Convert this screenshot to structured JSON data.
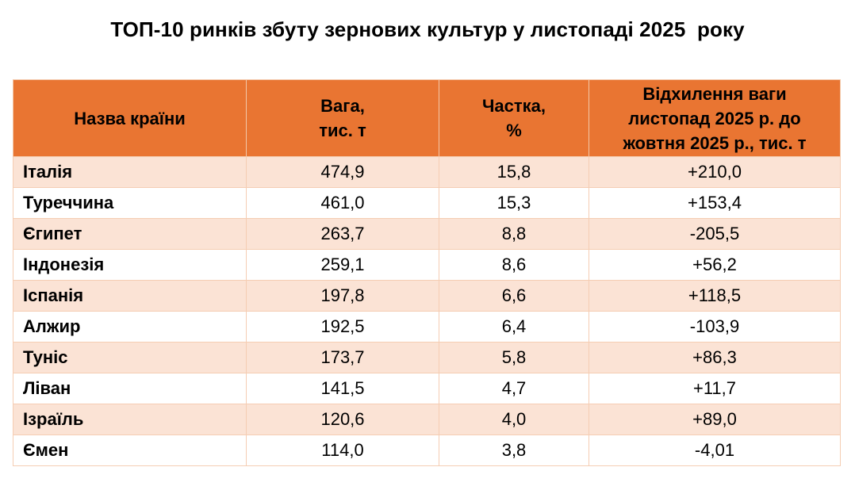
{
  "title": "ТОП-10 ринків збуту зернових культур у листопаді 2025  року",
  "colors": {
    "header_bg": "#e97532",
    "row_alt_bg": "#fbe3d5",
    "border": "#f5cdb3"
  },
  "table": {
    "headers": [
      [
        "Назва країни"
      ],
      [
        "Вага,",
        "тис. т"
      ],
      [
        "Частка,",
        "%"
      ],
      [
        "Відхилення ваги",
        "листопад 2025 р. до",
        "жовтня 2025  р., тис. т"
      ]
    ],
    "rows": [
      [
        "Італія",
        "474,9",
        "15,8",
        "+210,0"
      ],
      [
        "Туреччина",
        "461,0",
        "15,3",
        "+153,4"
      ],
      [
        "Єгипет",
        "263,7",
        "8,8",
        "-205,5"
      ],
      [
        "Індонезія",
        "259,1",
        "8,6",
        "+56,2"
      ],
      [
        "Іспанія",
        "197,8",
        "6,6",
        "+118,5"
      ],
      [
        "Алжир",
        "192,5",
        "6,4",
        "-103,9"
      ],
      [
        "Туніс",
        "173,7",
        "5,8",
        "+86,3"
      ],
      [
        "Ліван",
        "141,5",
        "4,7",
        "+11,7"
      ],
      [
        "Ізраїль",
        "120,6",
        "4,0",
        "+89,0"
      ],
      [
        "Ємен",
        "114,0",
        "3,8",
        "-4,01"
      ]
    ]
  }
}
